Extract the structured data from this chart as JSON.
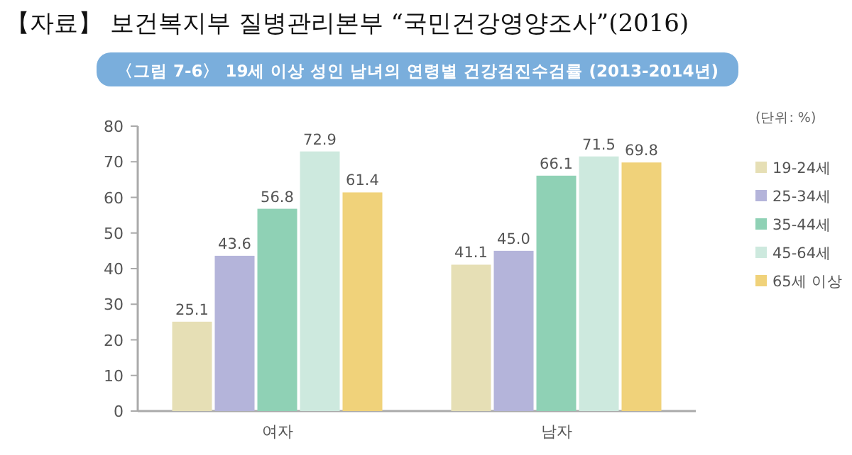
{
  "chart_data": {
    "type": "bar",
    "title": "〈그림 7-6〉 19세 이상 성인 남녀의 연령별 건강검진수검률 (2013-2014년)",
    "ylabel": "(단위: %)",
    "annotations": [
      "【자료】 보건복지부 질병관리본부 “국민건강영양조사”(2016)"
    ],
    "categories": [
      "여자",
      "남자"
    ],
    "series": [
      {
        "name": "19-24세",
        "color": "#e6dfb5",
        "values": [
          25.1,
          41.1
        ]
      },
      {
        "name": "25-34세",
        "color": "#b4b4da",
        "values": [
          43.6,
          45.0
        ],
        "value_labels": [
          "43.6",
          "45.0"
        ]
      },
      {
        "name": "35-44세",
        "color": "#8fd1b5",
        "values": [
          56.8,
          66.1
        ]
      },
      {
        "name": "45-64세",
        "color": "#cde9de",
        "values": [
          72.9,
          71.5
        ]
      },
      {
        "name": "65세 이상",
        "color": "#f0d27a",
        "values": [
          61.4,
          69.8
        ]
      }
    ],
    "ylim": [
      0,
      80
    ],
    "yticks": [
      0,
      10,
      20,
      30,
      40,
      50,
      60,
      70,
      80
    ],
    "data_labels": true,
    "legend": "right",
    "grid": false
  }
}
